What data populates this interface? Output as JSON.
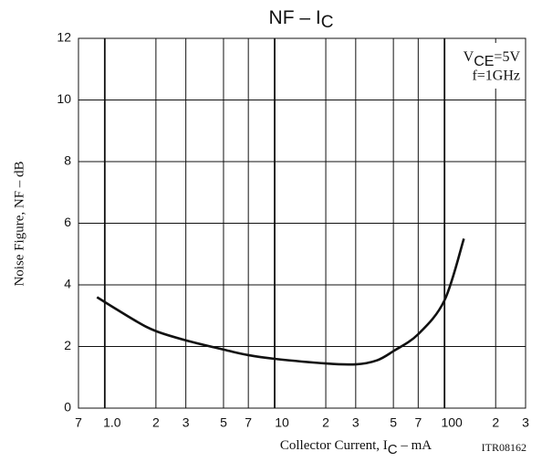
{
  "chart_data": {
    "type": "line",
    "title": {
      "text": "NF – I",
      "subscript": "C"
    },
    "x_label": {
      "text": "Collector Current, I",
      "subscript": "C",
      "suffix": " – mA"
    },
    "y_label": "Noise Figure, NF – dB",
    "annotations": {
      "condition_1": {
        "text": "V",
        "subscript": "CE",
        "suffix": "=5V"
      },
      "condition_2": "f=1GHz",
      "code": "ITR08162"
    },
    "xscale": "log",
    "grid": true,
    "xlim": [
      0.7,
      300
    ],
    "ylim": [
      0,
      12
    ],
    "xticks": [
      {
        "value": 0.7,
        "label": "7"
      },
      {
        "value": 1,
        "label": "1.0"
      },
      {
        "value": 2,
        "label": "2"
      },
      {
        "value": 3,
        "label": "3"
      },
      {
        "value": 5,
        "label": "5"
      },
      {
        "value": 7,
        "label": "7"
      },
      10,
      {
        "value": 20,
        "label": "2"
      },
      {
        "value": 30,
        "label": "3"
      },
      {
        "value": 50,
        "label": "5"
      },
      {
        "value": 70,
        "label": "7"
      },
      100,
      {
        "value": 200,
        "label": "2"
      },
      {
        "value": 300,
        "label": "3"
      }
    ],
    "yticks": [
      0,
      2,
      4,
      6,
      8,
      10,
      12
    ],
    "series": [
      {
        "color": "#111111",
        "x": [
          0.9,
          1.5,
          2,
          3,
          5,
          7,
          10,
          20,
          30,
          40,
          50,
          70,
          100,
          130
        ],
        "values": [
          3.6,
          2.85,
          2.5,
          2.2,
          1.9,
          1.72,
          1.6,
          1.45,
          1.42,
          1.55,
          1.85,
          2.4,
          3.5,
          5.5
        ]
      }
    ]
  }
}
